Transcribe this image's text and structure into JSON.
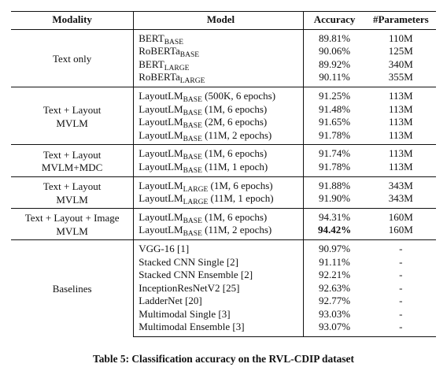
{
  "header": {
    "modality": "Modality",
    "model": "Model",
    "accuracy": "Accuracy",
    "parameters": "#Parameters"
  },
  "groups": [
    {
      "modality_lines": [
        "Text only"
      ],
      "rows": [
        {
          "base": "BERT",
          "sub": "BASE",
          "suffix": "",
          "accuracy": "89.81%",
          "params": "110M",
          "bold": false
        },
        {
          "base": "RoBERTa",
          "sub": "BASE",
          "suffix": "",
          "accuracy": "90.06%",
          "params": "125M",
          "bold": false
        },
        {
          "base": "BERT",
          "sub": "LARGE",
          "suffix": "",
          "accuracy": "89.92%",
          "params": "340M",
          "bold": false
        },
        {
          "base": "RoBERTa",
          "sub": "LARGE",
          "suffix": "",
          "accuracy": "90.11%",
          "params": "355M",
          "bold": false
        }
      ]
    },
    {
      "modality_lines": [
        "Text + Layout",
        "MVLM"
      ],
      "rows": [
        {
          "base": "LayoutLM",
          "sub": "BASE",
          "suffix": " (500K, 6 epochs)",
          "accuracy": "91.25%",
          "params": "113M",
          "bold": false
        },
        {
          "base": "LayoutLM",
          "sub": "BASE",
          "suffix": " (1M, 6 epochs)",
          "accuracy": "91.48%",
          "params": "113M",
          "bold": false
        },
        {
          "base": "LayoutLM",
          "sub": "BASE",
          "suffix": " (2M, 6 epochs)",
          "accuracy": "91.65%",
          "params": "113M",
          "bold": false
        },
        {
          "base": "LayoutLM",
          "sub": "BASE",
          "suffix": " (11M, 2 epochs)",
          "accuracy": "91.78%",
          "params": "113M",
          "bold": false
        }
      ]
    },
    {
      "modality_lines": [
        "Text + Layout",
        "MVLM+MDC"
      ],
      "rows": [
        {
          "base": "LayoutLM",
          "sub": "BASE",
          "suffix": " (1M, 6 epochs)",
          "accuracy": "91.74%",
          "params": "113M",
          "bold": false
        },
        {
          "base": "LayoutLM",
          "sub": "BASE",
          "suffix": " (11M, 1 epoch)",
          "accuracy": "91.78%",
          "params": "113M",
          "bold": false
        }
      ]
    },
    {
      "modality_lines": [
        "Text + Layout",
        "MVLM"
      ],
      "rows": [
        {
          "base": "LayoutLM",
          "sub": "LARGE",
          "suffix": " (1M, 6 epochs)",
          "accuracy": "91.88%",
          "params": "343M",
          "bold": false
        },
        {
          "base": "LayoutLM",
          "sub": "LARGE",
          "suffix": " (11M, 1 epoch)",
          "accuracy": "91.90%",
          "params": "343M",
          "bold": false
        }
      ]
    },
    {
      "modality_lines": [
        "Text + Layout + Image",
        "MVLM"
      ],
      "rows": [
        {
          "base": "LayoutLM",
          "sub": "BASE",
          "suffix": " (1M, 6 epochs)",
          "accuracy": "94.31%",
          "params": "160M",
          "bold": false
        },
        {
          "base": "LayoutLM",
          "sub": "BASE",
          "suffix": " (11M, 2 epochs)",
          "accuracy": "94.42%",
          "params": "160M",
          "bold": true
        }
      ]
    },
    {
      "modality_lines": [
        "Baselines"
      ],
      "rows": [
        {
          "base": "VGG-16 [1]",
          "sub": "",
          "suffix": "",
          "accuracy": "90.97%",
          "params": "-",
          "bold": false
        },
        {
          "base": "Stacked CNN Single [2]",
          "sub": "",
          "suffix": "",
          "accuracy": "91.11%",
          "params": "-",
          "bold": false
        },
        {
          "base": "Stacked CNN Ensemble [2]",
          "sub": "",
          "suffix": "",
          "accuracy": "92.21%",
          "params": "-",
          "bold": false
        },
        {
          "base": "InceptionResNetV2 [25]",
          "sub": "",
          "suffix": "",
          "accuracy": "92.63%",
          "params": "-",
          "bold": false
        },
        {
          "base": "LadderNet [20]",
          "sub": "",
          "suffix": "",
          "accuracy": "92.77%",
          "params": "-",
          "bold": false
        },
        {
          "base": "Multimodal Single [3]",
          "sub": "",
          "suffix": "",
          "accuracy": "93.03%",
          "params": "-",
          "bold": false
        },
        {
          "base": "Multimodal Ensemble [3]",
          "sub": "",
          "suffix": "",
          "accuracy": "93.07%",
          "params": "-",
          "bold": false
        }
      ]
    }
  ],
  "caption": "Table 5: Classification accuracy on the RVL-CDIP dataset"
}
